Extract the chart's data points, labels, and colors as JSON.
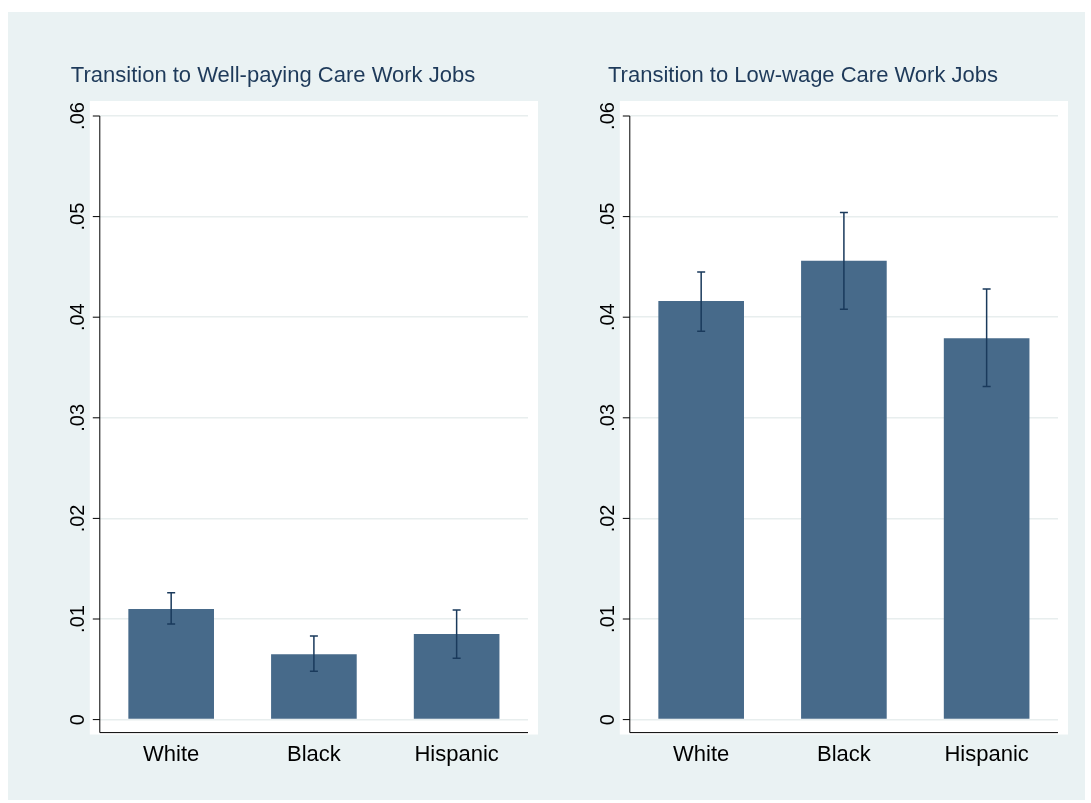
{
  "chart_data": [
    {
      "type": "bar",
      "title": "Transition to Well-paying Care Work Jobs",
      "categories": [
        "White",
        "Black",
        "Hispanic"
      ],
      "values": [
        0.011,
        0.0065,
        0.0085
      ],
      "errors": [
        [
          0.0095,
          0.0126
        ],
        [
          0.0048,
          0.0083
        ],
        [
          0.0061,
          0.0109
        ]
      ],
      "color": "#476a8a",
      "ylim": [
        0,
        0.06
      ],
      "yticks": [
        {
          "value": 0,
          "label": "0"
        },
        {
          "value": 0.01,
          "label": ".01"
        },
        {
          "value": 0.02,
          "label": ".02"
        },
        {
          "value": 0.03,
          "label": ".03"
        },
        {
          "value": 0.04,
          "label": ".04"
        },
        {
          "value": 0.05,
          "label": ".05"
        },
        {
          "value": 0.06,
          "label": ".06"
        }
      ],
      "grid": "y"
    },
    {
      "type": "bar",
      "title": "Transition to Low-wage Care Work Jobs",
      "categories": [
        "White",
        "Black",
        "Hispanic"
      ],
      "values": [
        0.0416,
        0.0456,
        0.0379
      ],
      "errors": [
        [
          0.0386,
          0.0445
        ],
        [
          0.0408,
          0.0504
        ],
        [
          0.0331,
          0.0428
        ]
      ],
      "color": "#476a8a",
      "ylim": [
        0,
        0.06
      ],
      "yticks": [
        {
          "value": 0,
          "label": "0"
        },
        {
          "value": 0.01,
          "label": ".01"
        },
        {
          "value": 0.02,
          "label": ".02"
        },
        {
          "value": 0.03,
          "label": ".03"
        },
        {
          "value": 0.04,
          "label": ".04"
        },
        {
          "value": 0.05,
          "label": ".05"
        },
        {
          "value": 0.06,
          "label": ".06"
        }
      ],
      "grid": "y"
    }
  ]
}
